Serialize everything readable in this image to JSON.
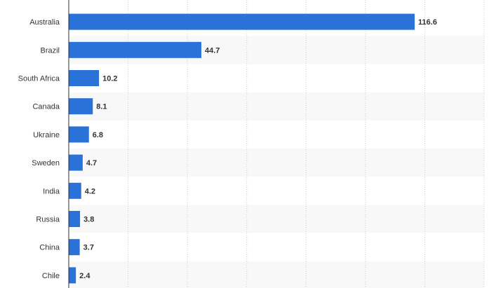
{
  "chart_data": {
    "type": "bar",
    "orientation": "horizontal",
    "categories": [
      "Australia",
      "Brazil",
      "South Africa",
      "Canada",
      "Ukraine",
      "Sweden",
      "India",
      "Russia",
      "China",
      "Chile"
    ],
    "values": [
      116.6,
      44.7,
      10.2,
      8.1,
      6.8,
      4.7,
      4.2,
      3.8,
      3.7,
      2.4
    ],
    "value_labels": [
      "116.6",
      "44.7",
      "10.2",
      "8.1",
      "6.8",
      "4.7",
      "4.2",
      "3.8",
      "3.7",
      "2.4"
    ],
    "xlim": [
      0,
      140
    ],
    "grid": true,
    "title": "",
    "xlabel": "",
    "ylabel": ""
  },
  "colors": {
    "bar": "#2a72d8",
    "band_alt": "#f8f8f8",
    "grid": "#cccccc",
    "axis": "#333333",
    "text": "#333333"
  }
}
